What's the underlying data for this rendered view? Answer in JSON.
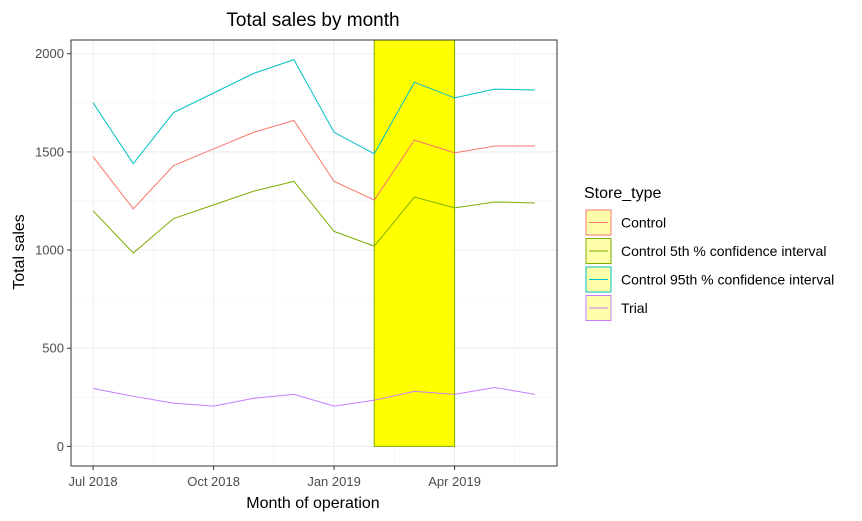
{
  "chart_data": {
    "type": "line",
    "title": "Total sales by month",
    "xlabel": "Month of operation",
    "ylabel": "Total sales",
    "x_tick_labels": [
      {
        "label": "Jul 2018",
        "month": 0
      },
      {
        "label": "Oct 2018",
        "month": 3
      },
      {
        "label": "Jan 2019",
        "month": 6
      },
      {
        "label": "Apr 2019",
        "month": 9
      }
    ],
    "y_ticks": [
      0,
      500,
      1000,
      1500,
      2000
    ],
    "xlim": [
      -0.55,
      11.55
    ],
    "ylim": [
      -100,
      2070
    ],
    "grid": true,
    "legend": {
      "title": "Store_type",
      "position": "right"
    },
    "months": [
      "2018-07",
      "2018-08",
      "2018-09",
      "2018-10",
      "2018-11",
      "2018-12",
      "2019-01",
      "2019-02",
      "2019-03",
      "2019-04",
      "2019-05",
      "2019-06"
    ],
    "series": [
      {
        "name": "Control",
        "color": "#F8766D",
        "values": [
          1475,
          1210,
          1430,
          1515,
          1600,
          1660,
          1350,
          1255,
          1560,
          1495,
          1530,
          1530
        ]
      },
      {
        "name": "Control 5th % confidence interval",
        "color": "#7CAE00",
        "values": [
          1200,
          985,
          1160,
          1230,
          1300,
          1350,
          1095,
          1020,
          1270,
          1215,
          1245,
          1240
        ]
      },
      {
        "name": "Control 95th % confidence interval",
        "color": "#00BFC4",
        "values": [
          1750,
          1440,
          1700,
          1800,
          1900,
          1970,
          1600,
          1490,
          1855,
          1775,
          1820,
          1815
        ]
      },
      {
        "name": "Trial",
        "color": "#C77CFF",
        "values": [
          295,
          255,
          220,
          205,
          245,
          265,
          205,
          235,
          280,
          265,
          300,
          265
        ]
      }
    ],
    "highlight": {
      "x_start": "2019-02",
      "x_end": "2019-04",
      "y_start": 0,
      "y_end": 2070,
      "fill": "#FFFF00",
      "stroke": "#7CAE00"
    },
    "legend_key_fill": "#FFFFAA"
  }
}
